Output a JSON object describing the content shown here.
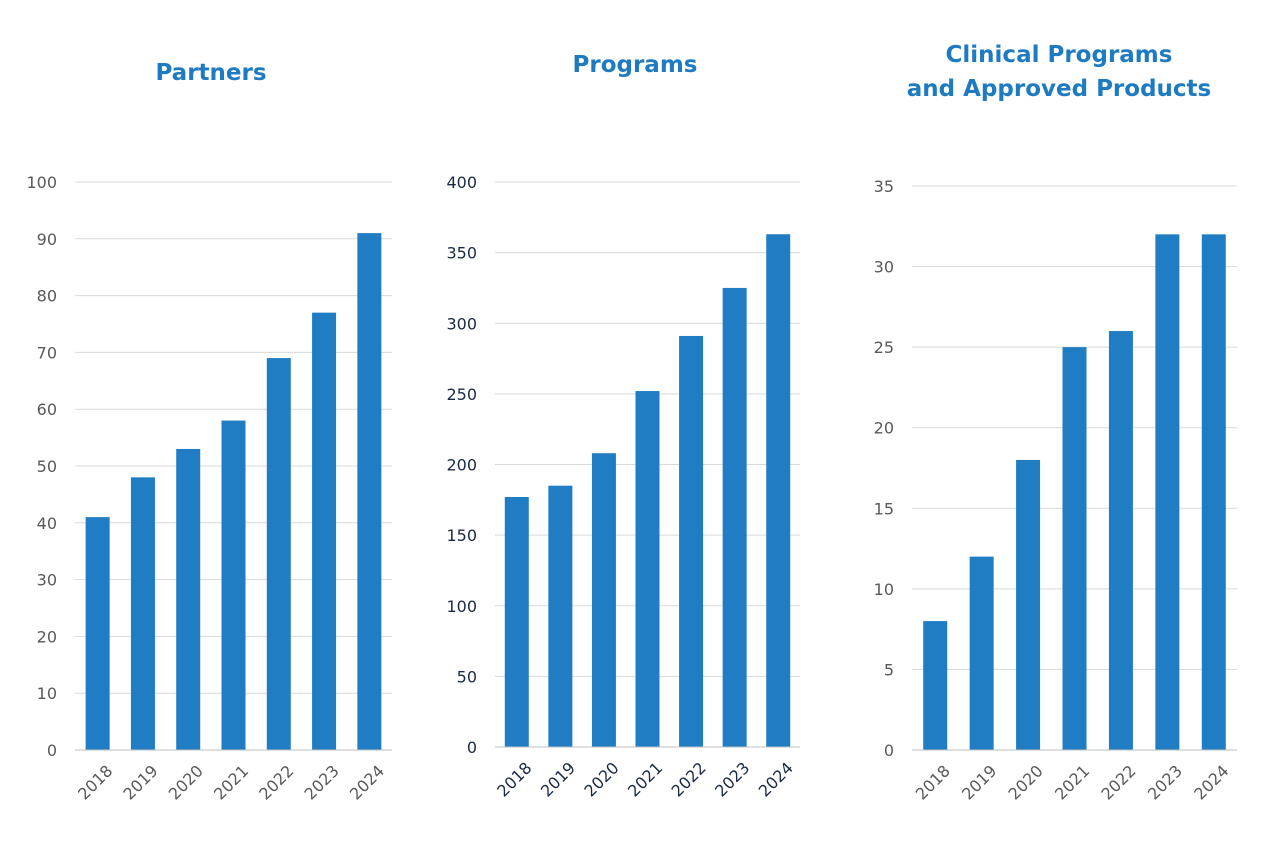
{
  "colors": {
    "bar": "#207dc3",
    "title": "#1f7bc1",
    "grid": "#d9d9d9",
    "axis": "#bfbfbf",
    "tick_gray": "#595959",
    "tick_navy": "#1b2a44"
  },
  "chart_data": [
    {
      "type": "bar",
      "title": [
        "Partners"
      ],
      "categories": [
        "2018",
        "2019",
        "2020",
        "2021",
        "2022",
        "2023",
        "2024"
      ],
      "values": [
        41,
        48,
        53,
        58,
        69,
        77,
        91
      ],
      "ylim": [
        0,
        100
      ],
      "yticks": [
        0,
        10,
        20,
        30,
        40,
        50,
        60,
        70,
        80,
        90,
        100
      ],
      "grid": true,
      "xlabel": "",
      "ylabel": ""
    },
    {
      "type": "bar",
      "title": [
        "Programs"
      ],
      "categories": [
        "2018",
        "2019",
        "2020",
        "2021",
        "2022",
        "2023",
        "2024"
      ],
      "values": [
        177,
        185,
        208,
        252,
        291,
        325,
        363
      ],
      "ylim": [
        0,
        400
      ],
      "yticks": [
        0,
        50,
        100,
        150,
        200,
        250,
        300,
        350,
        400
      ],
      "grid": true,
      "xlabel": "",
      "ylabel": ""
    },
    {
      "type": "bar",
      "title": [
        "Clinical Programs",
        "and Approved Products"
      ],
      "categories": [
        "2018",
        "2019",
        "2020",
        "2021",
        "2022",
        "2023",
        "2024"
      ],
      "values": [
        8,
        12,
        18,
        25,
        26,
        32,
        32
      ],
      "ylim": [
        0,
        35
      ],
      "yticks": [
        0,
        5,
        10,
        15,
        20,
        25,
        30,
        35
      ],
      "grid": true,
      "xlabel": "",
      "ylabel": ""
    }
  ]
}
